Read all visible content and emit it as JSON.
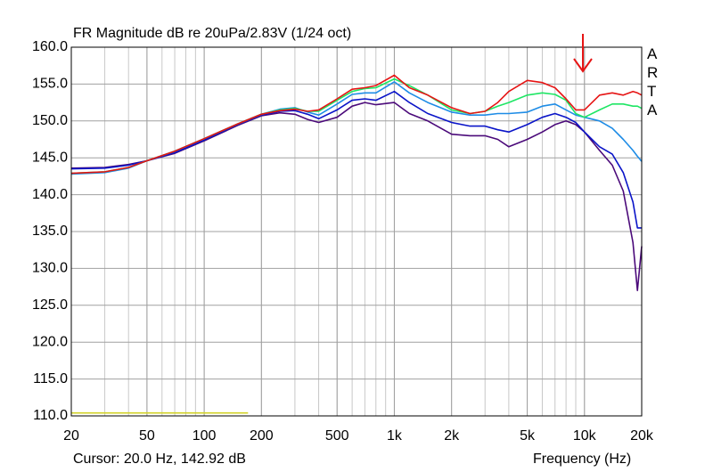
{
  "chart_data": {
    "type": "line",
    "title": "FR Magnitude dB re 20uPa/2.83V (1/24 oct)",
    "watermark": "ARTA",
    "cursor": "Cursor: 20.0 Hz, 142.92 dB",
    "xlabel": "Frequency (Hz)",
    "log_x": true,
    "grid": true,
    "xlim": [
      20,
      20000
    ],
    "ylim": [
      110,
      160
    ],
    "xticks": [
      20,
      50,
      100,
      200,
      500,
      {
        "value": 1000,
        "label": "1k"
      },
      {
        "value": 2000,
        "label": "2k"
      },
      {
        "value": 5000,
        "label": "5k"
      },
      {
        "value": 10000,
        "label": "10k"
      },
      {
        "value": 20000,
        "label": "20k"
      }
    ],
    "yticks": [
      {
        "value": 110,
        "label": "110.0"
      },
      {
        "value": 115,
        "label": "115.0"
      },
      {
        "value": 120,
        "label": "120.0"
      },
      {
        "value": 125,
        "label": "125.0"
      },
      {
        "value": 130,
        "label": "130.0"
      },
      {
        "value": 135,
        "label": "135.0"
      },
      {
        "value": 140,
        "label": "140.0"
      },
      {
        "value": 145,
        "label": "145.0"
      },
      {
        "value": 150,
        "label": "150.0"
      },
      {
        "value": 155,
        "label": "155.0"
      },
      {
        "value": 160,
        "label": "160.0"
      }
    ],
    "x": [
      20,
      30,
      40,
      50,
      70,
      100,
      150,
      200,
      250,
      300,
      350,
      400,
      500,
      600,
      700,
      800,
      1000,
      1200,
      1500,
      2000,
      2500,
      3000,
      3500,
      4000,
      5000,
      6000,
      7000,
      8000,
      9000,
      10000,
      12000,
      14000,
      16000,
      18000,
      19000,
      20000
    ],
    "series": [
      {
        "color": "#4b0a7a",
        "values": [
          143.6,
          143.7,
          144.1,
          144.6,
          145.6,
          147.3,
          149.4,
          150.7,
          151.1,
          150.9,
          150.2,
          149.8,
          150.5,
          152,
          152.5,
          152.2,
          152.5,
          151,
          150,
          148.2,
          148,
          148,
          147.5,
          146.5,
          147.5,
          148.5,
          149.5,
          150,
          149.5,
          148.5,
          146,
          144,
          140.5,
          133.5,
          127,
          133
        ]
      },
      {
        "color": "#0a14c8",
        "values": [
          143.5,
          143.6,
          144,
          144.6,
          145.7,
          147.4,
          149.5,
          150.8,
          151.3,
          151.4,
          150.9,
          150.3,
          151.5,
          152.8,
          153,
          152.8,
          154,
          152.5,
          151,
          149.8,
          149.3,
          149.3,
          148.8,
          148.5,
          149.5,
          150.5,
          151,
          150.5,
          149.8,
          148.5,
          146.5,
          145.5,
          143,
          139,
          135.5,
          135.5
        ]
      },
      {
        "color": "#1e8ce6",
        "values": [
          142.8,
          143,
          143.6,
          144.6,
          145.9,
          147.6,
          149.6,
          150.9,
          151.6,
          151.8,
          151.2,
          150.8,
          152.3,
          153.6,
          153.8,
          153.8,
          155.3,
          153.8,
          152.5,
          151.2,
          150.8,
          150.8,
          151,
          151,
          151.2,
          152,
          152.3,
          151.5,
          150.8,
          150.5,
          150,
          149,
          147.5,
          146,
          145.2,
          144.5
        ]
      },
      {
        "color": "#1ee664",
        "values": [
          142.9,
          143.1,
          143.7,
          144.6,
          145.9,
          147.6,
          149.6,
          150.9,
          151.5,
          151.7,
          151.3,
          151.3,
          152.8,
          154,
          154.4,
          154.5,
          155.7,
          154.8,
          153.5,
          151.5,
          151,
          151.3,
          152,
          152.5,
          153.5,
          153.8,
          153.6,
          152.8,
          151,
          150.5,
          151.5,
          152.3,
          152.3,
          152,
          152,
          151.7
        ]
      },
      {
        "color": "#e61414",
        "values": [
          142.9,
          143.1,
          143.7,
          144.6,
          145.9,
          147.6,
          149.6,
          150.9,
          151.4,
          151.6,
          151.3,
          151.5,
          153,
          154.3,
          154.5,
          154.8,
          156.2,
          154.5,
          153.5,
          151.8,
          151,
          151.3,
          152.5,
          154,
          155.5,
          155.2,
          154.5,
          153,
          151.5,
          151.5,
          153.5,
          153.8,
          153.5,
          154,
          153.8,
          153.5
        ]
      },
      {
        "color": "#d2d228",
        "x": [
          20,
          170
        ],
        "values": [
          110.4,
          110.4
        ]
      }
    ]
  }
}
